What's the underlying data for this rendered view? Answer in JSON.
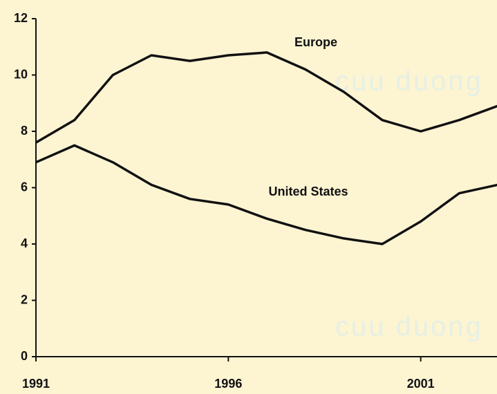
{
  "chart_data": {
    "type": "line",
    "x": [
      1991,
      1992,
      1993,
      1994,
      1995,
      1996,
      1997,
      1998,
      1999,
      2000,
      2001,
      2002,
      2003
    ],
    "series": [
      {
        "name": "Europe",
        "color": "#111111",
        "values": [
          7.6,
          8.4,
          10.0,
          10.7,
          10.5,
          10.7,
          10.8,
          10.2,
          9.4,
          8.4,
          8.0,
          8.4,
          8.9
        ]
      },
      {
        "name": "United States",
        "color": "#111111",
        "values": [
          6.9,
          7.5,
          6.9,
          6.1,
          5.6,
          5.4,
          4.9,
          4.5,
          4.2,
          4.0,
          4.8,
          5.8,
          6.1
        ]
      }
    ],
    "watermark": "cuu duong",
    "xlim": [
      1991,
      2003
    ],
    "xticks": [
      1991,
      1996,
      2001
    ],
    "ylim": [
      0,
      12
    ],
    "yticks": [
      0,
      2,
      4,
      6,
      8,
      10,
      12
    ],
    "grid": false
  }
}
